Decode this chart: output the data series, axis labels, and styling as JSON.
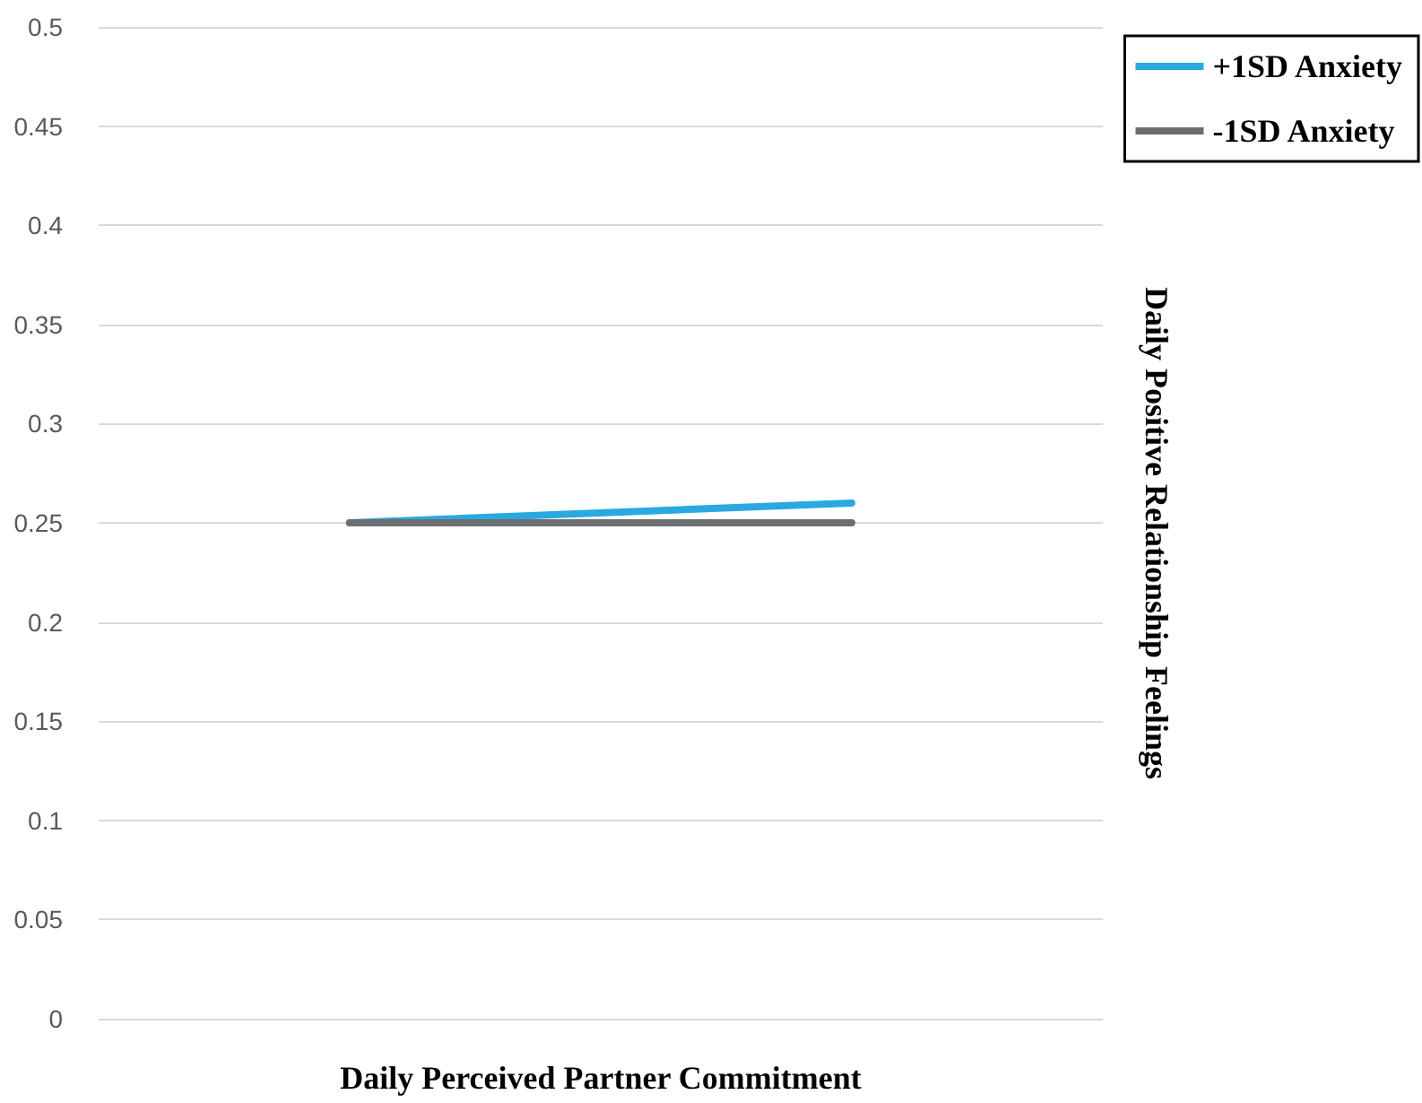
{
  "chart_data": {
    "type": "line",
    "xlabel": "Daily Perceived Partner Commitment",
    "ylabel": "Daily Positive Relationship Feelings",
    "categories": [
      null,
      null
    ],
    "series": [
      {
        "name": "+1SD Anxiety",
        "color": "#29a9e0",
        "values": [
          0.25,
          0.26
        ]
      },
      {
        "name": "-1SD Anxiety",
        "color": "#6d6e70",
        "values": [
          0.25,
          0.25
        ]
      }
    ],
    "ylim": [
      0,
      0.5
    ],
    "yticks": [
      0,
      0.05,
      0.1,
      0.15,
      0.2,
      0.25,
      0.3,
      0.35,
      0.4,
      0.45,
      0.5
    ],
    "grid": "y",
    "legend": "top right",
    "marker": "none",
    "line_style": "solid"
  }
}
